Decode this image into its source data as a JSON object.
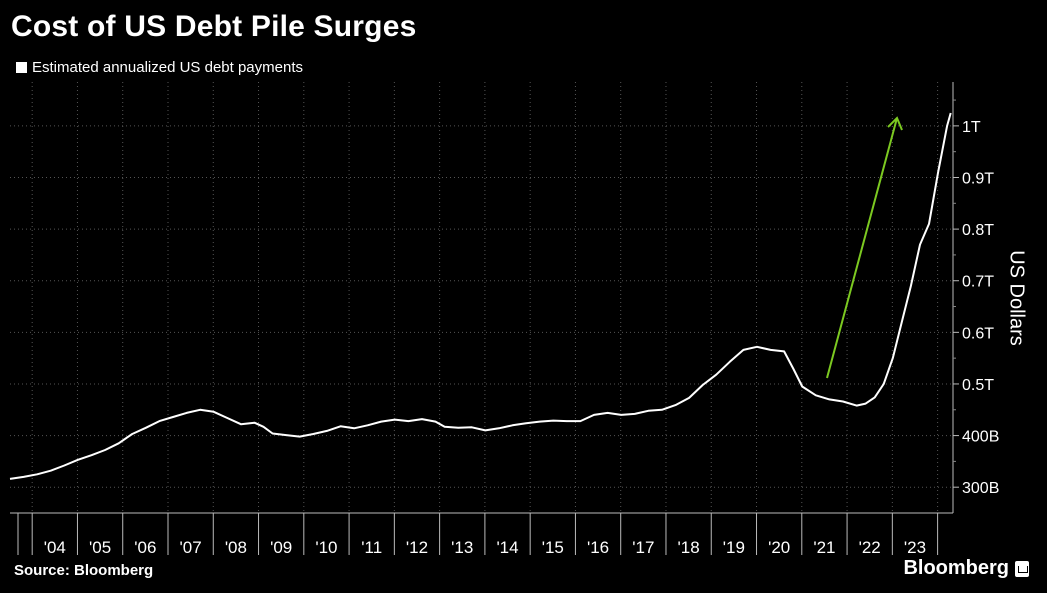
{
  "title": "Cost of US Debt Pile Surges",
  "legend": "Estimated annualized US debt payments",
  "source": "Source: Bloomberg",
  "brand": "Bloomberg",
  "colors": {
    "background": "#000000",
    "line": "#ffffff",
    "arrow": "#7cc921",
    "grid": "#555555"
  },
  "chart_data": {
    "type": "line",
    "title": "Cost of US Debt Pile Surges",
    "ylabel": "US Dollars",
    "xlabel": "",
    "x_tick_labels": [
      "'04",
      "'05",
      "'06",
      "'07",
      "'08",
      "'09",
      "'10",
      "'11",
      "'12",
      "'13",
      "'14",
      "'15",
      "'16",
      "'17",
      "'18",
      "'19",
      "'20",
      "'21",
      "'22",
      "'23"
    ],
    "y_ticks": [
      {
        "value": 300,
        "label": "300B"
      },
      {
        "value": 400,
        "label": "400B"
      },
      {
        "value": 500,
        "label": "0.5T"
      },
      {
        "value": 600,
        "label": "0.6T"
      },
      {
        "value": 700,
        "label": "0.7T"
      },
      {
        "value": 800,
        "label": "0.8T"
      },
      {
        "value": 900,
        "label": "0.9T"
      },
      {
        "value": 1000,
        "label": "1T"
      }
    ],
    "ylim": [
      250,
      1085
    ],
    "xlim": [
      2003.0,
      2023.83
    ],
    "grid": true,
    "legend_position": "top-left",
    "annotation": "green upward arrow",
    "series": [
      {
        "name": "Estimated annualized US debt payments",
        "points": [
          [
            2003.0,
            316
          ],
          [
            2003.3,
            320
          ],
          [
            2003.6,
            325
          ],
          [
            2003.9,
            332
          ],
          [
            2004.2,
            342
          ],
          [
            2004.5,
            353
          ],
          [
            2004.8,
            362
          ],
          [
            2005.1,
            372
          ],
          [
            2005.4,
            385
          ],
          [
            2005.7,
            403
          ],
          [
            2006.0,
            415
          ],
          [
            2006.3,
            428
          ],
          [
            2006.6,
            436
          ],
          [
            2006.9,
            444
          ],
          [
            2007.2,
            450
          ],
          [
            2007.5,
            446
          ],
          [
            2007.8,
            434
          ],
          [
            2008.1,
            422
          ],
          [
            2008.4,
            425
          ],
          [
            2008.6,
            417
          ],
          [
            2008.8,
            404
          ],
          [
            2009.1,
            401
          ],
          [
            2009.4,
            398
          ],
          [
            2009.7,
            403
          ],
          [
            2010.0,
            409
          ],
          [
            2010.3,
            418
          ],
          [
            2010.6,
            414
          ],
          [
            2010.9,
            420
          ],
          [
            2011.2,
            427
          ],
          [
            2011.5,
            431
          ],
          [
            2011.8,
            428
          ],
          [
            2012.1,
            432
          ],
          [
            2012.4,
            427
          ],
          [
            2012.6,
            417
          ],
          [
            2012.9,
            415
          ],
          [
            2013.2,
            416
          ],
          [
            2013.5,
            410
          ],
          [
            2013.8,
            414
          ],
          [
            2014.1,
            420
          ],
          [
            2014.4,
            424
          ],
          [
            2014.7,
            427
          ],
          [
            2015.0,
            429
          ],
          [
            2015.3,
            428
          ],
          [
            2015.6,
            428
          ],
          [
            2015.9,
            440
          ],
          [
            2016.2,
            444
          ],
          [
            2016.5,
            440
          ],
          [
            2016.8,
            442
          ],
          [
            2017.1,
            448
          ],
          [
            2017.4,
            450
          ],
          [
            2017.7,
            459
          ],
          [
            2018.0,
            473
          ],
          [
            2018.3,
            498
          ],
          [
            2018.6,
            518
          ],
          [
            2018.9,
            543
          ],
          [
            2019.2,
            566
          ],
          [
            2019.5,
            572
          ],
          [
            2019.8,
            566
          ],
          [
            2020.1,
            563
          ],
          [
            2020.3,
            530
          ],
          [
            2020.5,
            495
          ],
          [
            2020.8,
            478
          ],
          [
            2021.1,
            470
          ],
          [
            2021.4,
            466
          ],
          [
            2021.7,
            458
          ],
          [
            2021.9,
            462
          ],
          [
            2022.1,
            474
          ],
          [
            2022.3,
            500
          ],
          [
            2022.5,
            550
          ],
          [
            2022.7,
            620
          ],
          [
            2022.9,
            690
          ],
          [
            2023.1,
            770
          ],
          [
            2023.3,
            810
          ],
          [
            2023.5,
            910
          ],
          [
            2023.7,
            1000
          ],
          [
            2023.78,
            1025
          ]
        ]
      }
    ]
  }
}
